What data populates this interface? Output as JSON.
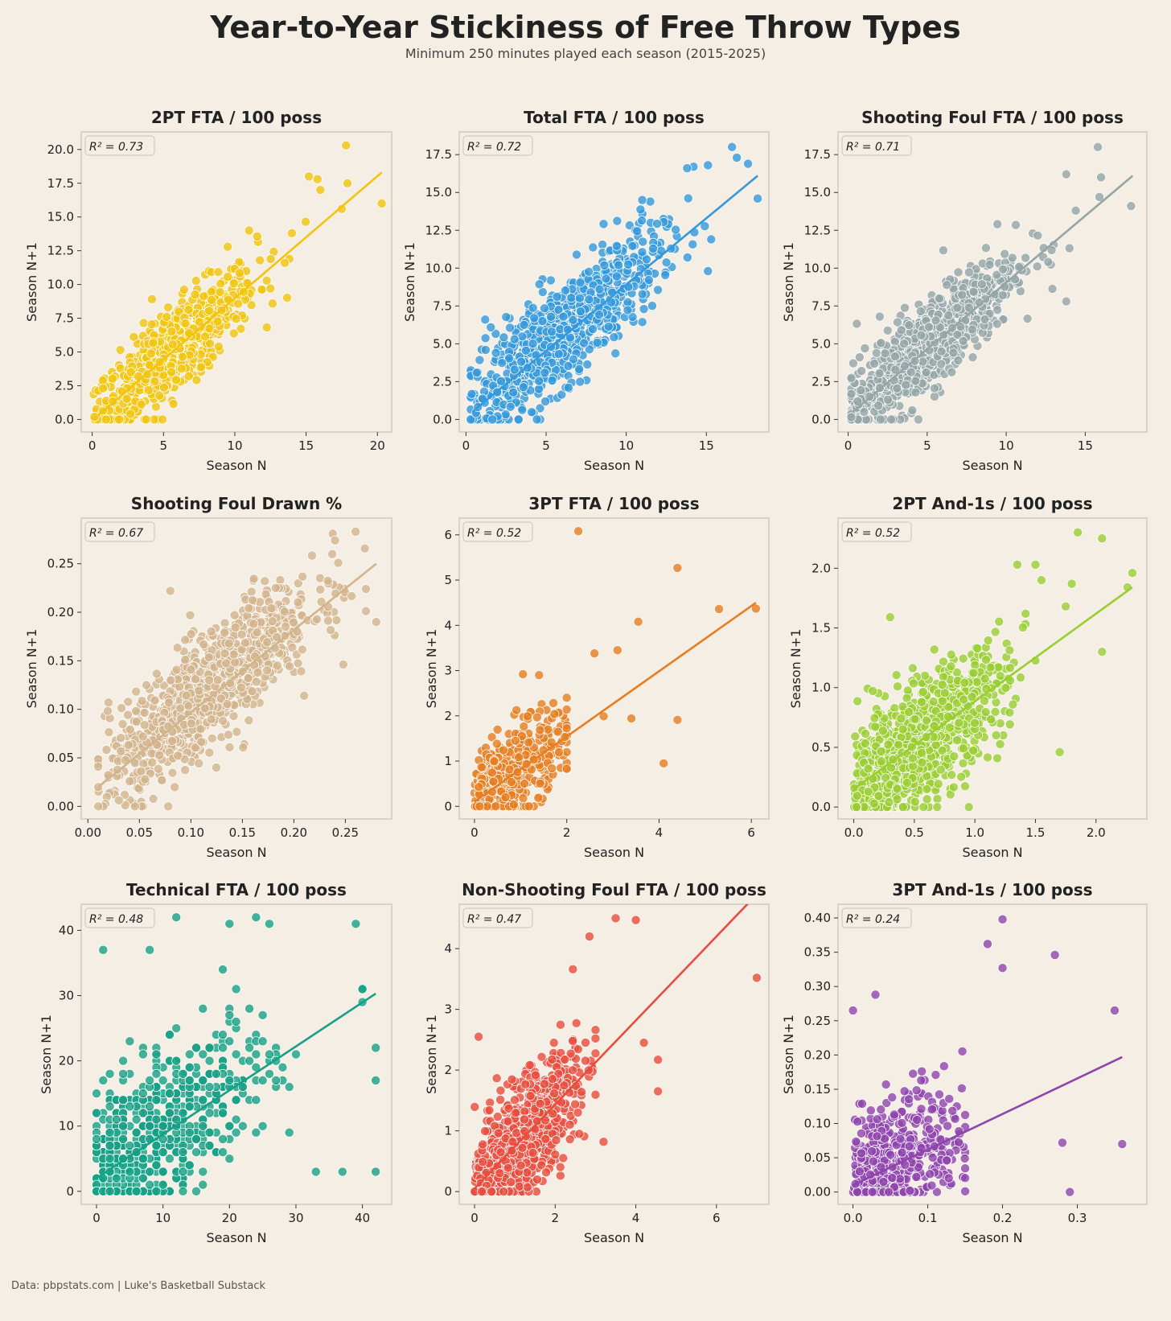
{
  "title": "Year-to-Year Stickiness of Free Throw Types",
  "subtitle": "Minimum 250 minutes played each season (2015-2025)",
  "footer": "Data: pbpstats.com | Luke's Basketball Substack",
  "chart_data": [
    {
      "type": "scatter",
      "title": "2PT FTA / 100 poss",
      "xlabel": "Season N",
      "ylabel": "Season N+1",
      "r2_label": "R² = 0.73",
      "color": "#f1c40f",
      "xlim": [
        -0.77,
        21.0
      ],
      "ylim": [
        -0.93,
        21.3
      ],
      "xticks": [
        0,
        5,
        10,
        15,
        20
      ],
      "xtick_labels": [
        "0",
        "5",
        "10",
        "15",
        "20"
      ],
      "yticks": [
        0,
        2.5,
        5,
        7.5,
        10,
        12.5,
        15,
        17.5,
        20
      ],
      "ytick_labels": [
        "0.0",
        "2.5",
        "5.0",
        "7.5",
        "10.0",
        "12.5",
        "15.0",
        "17.5",
        "20.0"
      ],
      "fit_line": [
        [
          0.2,
          0.1
        ],
        [
          20.3,
          18.3
        ]
      ],
      "cloud": {
        "n": 700,
        "mu": 5.5,
        "sd": 3,
        "a": -0.1,
        "b": 0.9,
        "noise": 1.6,
        "xmin": 0.1,
        "xmax": 15,
        "ymin": 0
      },
      "points": [
        [
          17.8,
          20.3
        ],
        [
          15.2,
          18.0
        ],
        [
          15.8,
          17.8
        ],
        [
          16.0,
          17.0
        ],
        [
          17.9,
          17.5
        ],
        [
          20.3,
          16.0
        ],
        [
          17.5,
          15.6
        ],
        [
          14,
          13.8
        ],
        [
          13.5,
          11.6
        ],
        [
          12.5,
          9.7
        ],
        [
          11,
          14
        ],
        [
          9.5,
          12.8
        ]
      ]
    },
    {
      "type": "scatter",
      "title": "Total FTA / 100 poss",
      "xlabel": "Season N",
      "ylabel": "Season N+1",
      "r2_label": "R² = 0.72",
      "color": "#3498db",
      "xlim": [
        -0.42,
        18.9
      ],
      "ylim": [
        -0.83,
        19.0
      ],
      "xticks": [
        0,
        5,
        10,
        15
      ],
      "xtick_labels": [
        "0",
        "5",
        "10",
        "15"
      ],
      "yticks": [
        0,
        2.5,
        5,
        7.5,
        10,
        12.5,
        15,
        17.5
      ],
      "ytick_labels": [
        "0.0",
        "2.5",
        "5.0",
        "7.5",
        "10.0",
        "12.5",
        "15.0",
        "17.5"
      ],
      "fit_line": [
        [
          0.4,
          0.5
        ],
        [
          18.2,
          16.1
        ]
      ],
      "cloud": {
        "n": 800,
        "mu": 6,
        "sd": 3,
        "a": 0.5,
        "b": 0.87,
        "noise": 1.7,
        "xmin": 0.3,
        "xmax": 15,
        "ymin": 0
      },
      "points": [
        [
          16.6,
          18
        ],
        [
          16.9,
          17.3
        ],
        [
          17.6,
          16.9
        ],
        [
          18.2,
          14.6
        ],
        [
          15.1,
          16.8
        ],
        [
          14.2,
          16.7
        ],
        [
          13.8,
          16.6
        ],
        [
          15.3,
          11.9
        ],
        [
          15.1,
          9.8
        ],
        [
          11.5,
          14.4
        ],
        [
          11,
          14.5
        ],
        [
          1.2,
          6.6
        ],
        [
          11.1,
          7.3
        ]
      ]
    },
    {
      "type": "scatter",
      "title": "Shooting Foul FTA / 100 poss",
      "xlabel": "Season N",
      "ylabel": "Season N+1",
      "r2_label": "R² = 0.71",
      "color": "#95a5a6",
      "xlim": [
        -0.64,
        18.9
      ],
      "ylim": [
        -0.83,
        19.0
      ],
      "xticks": [
        0,
        5,
        10,
        15
      ],
      "xtick_labels": [
        "0",
        "5",
        "10",
        "15"
      ],
      "yticks": [
        0,
        2.5,
        5,
        7.5,
        10,
        12.5,
        15,
        17.5
      ],
      "ytick_labels": [
        "0.0",
        "2.5",
        "5.0",
        "7.5",
        "10.0",
        "12.5",
        "15.0",
        "17.5"
      ],
      "fit_line": [
        [
          0.3,
          0.5
        ],
        [
          18,
          16.1
        ]
      ],
      "cloud": {
        "n": 800,
        "mu": 5,
        "sd": 2.8,
        "a": 0.5,
        "b": 0.88,
        "noise": 1.5,
        "xmin": 0.2,
        "xmax": 14,
        "ymin": 0
      },
      "points": [
        [
          15.8,
          18.0
        ],
        [
          13.8,
          16.2
        ],
        [
          16,
          16
        ],
        [
          17.9,
          14.1
        ],
        [
          13.8,
          7.8
        ],
        [
          15.9,
          14.7
        ],
        [
          14.4,
          13.8
        ],
        [
          2,
          6.8
        ]
      ]
    },
    {
      "type": "scatter",
      "title": "Shooting Foul Drawn %",
      "xlabel": "Season N",
      "ylabel": "Season N+1",
      "r2_label": "R² = 0.67",
      "color": "#d2b48c",
      "xlim": [
        -0.0065,
        0.295
      ],
      "ylim": [
        -0.013,
        0.297
      ],
      "xticks": [
        0,
        0.05,
        0.1,
        0.15,
        0.2,
        0.25
      ],
      "xtick_labels": [
        "0.00",
        "0.05",
        "0.10",
        "0.15",
        "0.20",
        "0.25"
      ],
      "yticks": [
        0,
        0.05,
        0.1,
        0.15,
        0.2,
        0.25
      ],
      "ytick_labels": [
        "0.00",
        "0.05",
        "0.10",
        "0.15",
        "0.20",
        "0.25"
      ],
      "fit_line": [
        [
          0.01,
          0.02
        ],
        [
          0.28,
          0.25
        ]
      ],
      "cloud": {
        "n": 1000,
        "mu": 0.12,
        "sd": 0.05,
        "a": 0.02,
        "b": 0.85,
        "noise": 0.028,
        "xmin": 0.01,
        "xmax": 0.27,
        "ymin": 0
      },
      "points": [
        [
          0.08,
          0.222
        ],
        [
          0.26,
          0.283
        ],
        [
          0.24,
          0.274
        ],
        [
          0.28,
          0.19
        ],
        [
          0.078,
          0.0
        ],
        [
          0.21,
          0.114
        ],
        [
          0.02,
          0.107
        ]
      ]
    },
    {
      "type": "scatter",
      "title": "3PT FTA / 100 poss",
      "xlabel": "Season N",
      "ylabel": "Season N+1",
      "r2_label": "R² = 0.52",
      "color": "#e67e22",
      "xlim": [
        -0.33,
        6.38
      ],
      "ylim": [
        -0.28,
        6.37
      ],
      "xticks": [
        0,
        2,
        4,
        6
      ],
      "xtick_labels": [
        "0",
        "2",
        "4",
        "6"
      ],
      "yticks": [
        0,
        1,
        2,
        3,
        4,
        5,
        6
      ],
      "ytick_labels": [
        "0",
        "1",
        "2",
        "3",
        "4",
        "5",
        "6"
      ],
      "fit_line": [
        [
          0,
          0.1
        ],
        [
          6.1,
          4.5
        ]
      ],
      "cloud": {
        "n": 450,
        "mu": 0.8,
        "sd": 0.6,
        "a": 0.1,
        "b": 0.72,
        "noise": 0.5,
        "xmin": 0,
        "xmax": 2,
        "ymin": 0
      },
      "points": [
        [
          2.25,
          6.08
        ],
        [
          4.4,
          5.27
        ],
        [
          5.3,
          4.36
        ],
        [
          6.1,
          4.37
        ],
        [
          3.55,
          4.08
        ],
        [
          3.1,
          3.45
        ],
        [
          2.6,
          3.38
        ],
        [
          4.4,
          1.91
        ],
        [
          4.1,
          0.95
        ],
        [
          3.4,
          1.94
        ],
        [
          2.8,
          1.99
        ],
        [
          1.05,
          2.92
        ],
        [
          2.0,
          2.4
        ],
        [
          1.4,
          2.9
        ]
      ]
    },
    {
      "type": "scatter",
      "title": "2PT And-1s / 100 poss",
      "xlabel": "Season N",
      "ylabel": "Season N+1",
      "r2_label": "R² = 0.52",
      "color": "#9acd32",
      "xlim": [
        -0.13,
        2.42
      ],
      "ylim": [
        -0.1,
        2.42
      ],
      "xticks": [
        0,
        0.5,
        1,
        1.5,
        2
      ],
      "xtick_labels": [
        "0.0",
        "0.5",
        "1.0",
        "1.5",
        "2.0"
      ],
      "yticks": [
        0,
        0.5,
        1,
        1.5,
        2
      ],
      "ytick_labels": [
        "0.0",
        "0.5",
        "1.0",
        "1.5",
        "2.0"
      ],
      "fit_line": [
        [
          0,
          0.15
        ],
        [
          2.3,
          1.84
        ]
      ],
      "cloud": {
        "n": 900,
        "mu": 0.55,
        "sd": 0.35,
        "a": 0.15,
        "b": 0.73,
        "noise": 0.25,
        "xmin": 0,
        "xmax": 1.5,
        "ymin": 0
      },
      "points": [
        [
          1.85,
          2.3
        ],
        [
          2.05,
          2.25
        ],
        [
          1.5,
          2.03
        ],
        [
          1.35,
          2.03
        ],
        [
          1.8,
          1.87
        ],
        [
          1.55,
          1.9
        ],
        [
          2.3,
          1.96
        ],
        [
          2.26,
          1.84
        ],
        [
          0.3,
          1.59
        ],
        [
          2.05,
          1.3
        ],
        [
          1.7,
          0.46
        ],
        [
          0.95,
          0.0
        ],
        [
          1.75,
          1.68
        ]
      ]
    },
    {
      "type": "scatter",
      "title": "Technical FTA / 100 poss",
      "xlabel": "Season N",
      "ylabel": "Season N+1",
      "r2_label": "R² = 0.48",
      "color": "#16a085",
      "xlim": [
        -2.3,
        44.4
      ],
      "ylim": [
        -2,
        44
      ],
      "xticks": [
        0,
        10,
        20,
        30,
        40
      ],
      "xtick_labels": [
        "0",
        "10",
        "20",
        "30",
        "40"
      ],
      "yticks": [
        0,
        10,
        20,
        30,
        40
      ],
      "ytick_labels": [
        "0",
        "10",
        "20",
        "30",
        "40"
      ],
      "fit_line": [
        [
          0,
          2
        ],
        [
          42,
          30.3
        ]
      ],
      "cloud": {
        "n": 650,
        "mu": 8,
        "sd": 9,
        "a": 2,
        "b": 0.67,
        "noise": 6,
        "xmin": 0,
        "xmax": 40,
        "ymin": 0,
        "integer": true
      },
      "points": [
        [
          12,
          42
        ],
        [
          20,
          41
        ],
        [
          24,
          42
        ],
        [
          39,
          41
        ],
        [
          42,
          3
        ],
        [
          37,
          3
        ],
        [
          33,
          3
        ],
        [
          42,
          17
        ],
        [
          42,
          22
        ],
        [
          1,
          37
        ],
        [
          8,
          37
        ],
        [
          40,
          31
        ],
        [
          26,
          41
        ]
      ]
    },
    {
      "type": "scatter",
      "title": "Non-Shooting Foul FTA / 100 poss",
      "xlabel": "Season N",
      "ylabel": "Season N+1",
      "r2_label": "R² = 0.47",
      "color": "#e74c3c",
      "xlim": [
        -0.38,
        7.3
      ],
      "ylim": [
        -0.21,
        4.73
      ],
      "xticks": [
        0,
        2,
        4,
        6
      ],
      "xtick_labels": [
        "0",
        "2",
        "4",
        "6"
      ],
      "yticks": [
        0,
        1,
        2,
        3,
        4
      ],
      "ytick_labels": [
        "0",
        "1",
        "2",
        "3",
        "4"
      ],
      "fit_line": [
        [
          0,
          0.05
        ],
        [
          7.3,
          5.1
        ]
      ],
      "cloud": {
        "n": 900,
        "mu": 1.1,
        "sd": 0.7,
        "a": 0.05,
        "b": 0.69,
        "noise": 0.45,
        "xmin": 0,
        "xmax": 3,
        "ymin": 0
      },
      "points": [
        [
          3.5,
          4.5
        ],
        [
          4,
          4.47
        ],
        [
          2.85,
          4.2
        ],
        [
          7,
          3.52
        ],
        [
          4.55,
          2.17
        ],
        [
          4.55,
          1.65
        ],
        [
          4.2,
          2.45
        ],
        [
          0.1,
          2.55
        ],
        [
          3.2,
          0.82
        ],
        [
          2.6,
          0.95
        ]
      ]
    },
    {
      "type": "scatter",
      "title": "3PT And-1s / 100 poss",
      "xlabel": "Season N",
      "ylabel": "Season N+1",
      "r2_label": "R² = 0.24",
      "color": "#8e44ad",
      "xlim": [
        -0.02,
        0.393
      ],
      "ylim": [
        -0.018,
        0.42
      ],
      "xticks": [
        0,
        0.1,
        0.2,
        0.3
      ],
      "xtick_labels": [
        "0.0",
        "0.1",
        "0.2",
        "0.3"
      ],
      "yticks": [
        0,
        0.05,
        0.1,
        0.15,
        0.2,
        0.25,
        0.3,
        0.35,
        0.4
      ],
      "ytick_labels": [
        "0.00",
        "0.05",
        "0.10",
        "0.15",
        "0.20",
        "0.25",
        "0.30",
        "0.35",
        "0.40"
      ],
      "fit_line": [
        [
          0,
          0.01
        ],
        [
          0.36,
          0.197
        ]
      ],
      "cloud": {
        "n": 500,
        "mu": 0.05,
        "sd": 0.05,
        "a": 0.01,
        "b": 0.52,
        "noise": 0.05,
        "xmin": 0,
        "xmax": 0.15,
        "ymin": 0
      },
      "points": [
        [
          0.2,
          0.398
        ],
        [
          0.18,
          0.362
        ],
        [
          0.27,
          0.346
        ],
        [
          0.2,
          0.327
        ],
        [
          0.35,
          0.265
        ],
        [
          0.36,
          0.07
        ],
        [
          0.29,
          0.0
        ],
        [
          0.28,
          0.072
        ],
        [
          0.0,
          0.265
        ],
        [
          0.03,
          0.288
        ]
      ]
    }
  ]
}
